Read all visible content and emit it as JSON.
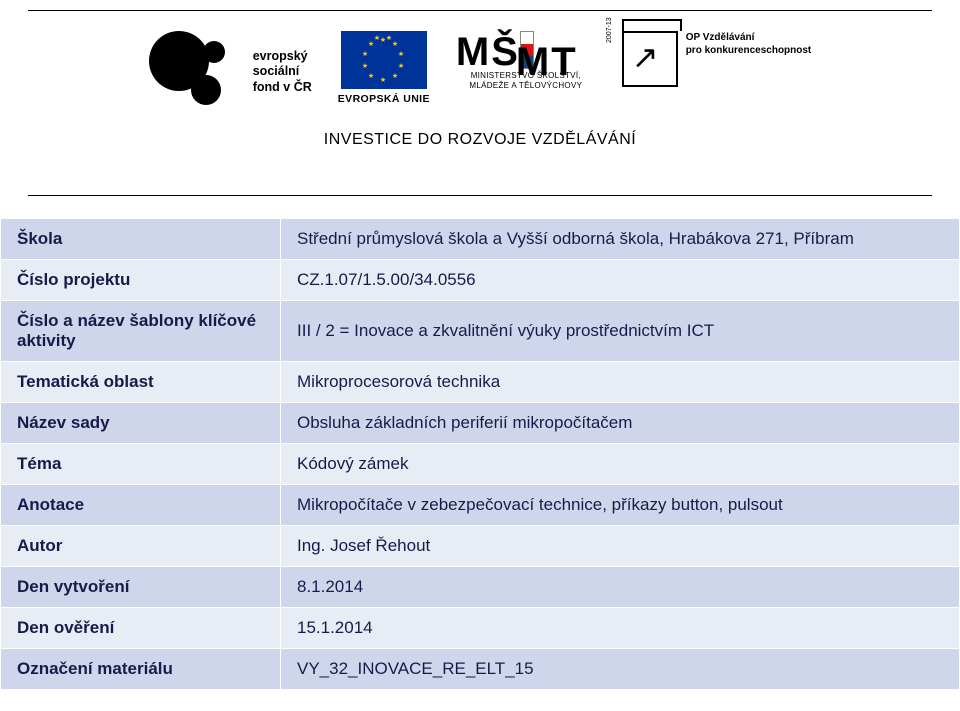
{
  "banner": {
    "esf_text_lines": [
      "evropský",
      "sociální",
      "fond v ČR"
    ],
    "eu_label": "EVROPSKÁ UNIE",
    "msmt_lines": [
      "MINISTERSTVO ŠKOLSTVÍ,",
      "MLÁDEŽE A TĚLOVÝCHOVY"
    ],
    "op_lines": [
      "OP Vzdělávání",
      "pro konkurenceschopnost"
    ],
    "tagline": "INVESTICE DO ROZVOJE VZDĚLÁVÁNÍ"
  },
  "table": {
    "rows": [
      {
        "label": "Škola",
        "value": "Střední průmyslová škola a Vyšší odborná škola, Hrabákova 271, Příbram",
        "band": "a"
      },
      {
        "label": "Číslo projektu",
        "value": "CZ.1.07/1.5.00/34.0556",
        "band": "b"
      },
      {
        "label": "Číslo a název šablony klíčové aktivity",
        "value": "  III / 2   = Inovace a zkvalitnění výuky prostřednictvím ICT",
        "band": "a"
      },
      {
        "label": "Tematická oblast",
        "value": "Mikroprocesorová technika",
        "band": "b"
      },
      {
        "label": "Název sady",
        "value": "Obsluha základních periferií mikropočítačem",
        "band": "a"
      },
      {
        "label": "Téma",
        "value": "Kódový zámek",
        "band": "b"
      },
      {
        "label": "Anotace",
        "value": "Mikropočítače v zebezpečovací technice, příkazy button, pulsout",
        "band": "a"
      },
      {
        "label": "Autor",
        "value": "Ing. Josef Řehout",
        "band": "b"
      },
      {
        "label": "Den vytvoření",
        "value": "8.1.2014",
        "band": "a"
      },
      {
        "label": "Den ověření",
        "value": "15.1.2014",
        "band": "b"
      },
      {
        "label": "Označení materiálu",
        "value": "VY_32_INOVACE_RE_ELT_15",
        "band": "a"
      }
    ]
  },
  "colors": {
    "band_a": "#cfd6eb",
    "band_b": "#e8ecf5",
    "text": "#1a1a4a",
    "eu_blue": "#003399",
    "eu_gold": "#ffcc00"
  }
}
